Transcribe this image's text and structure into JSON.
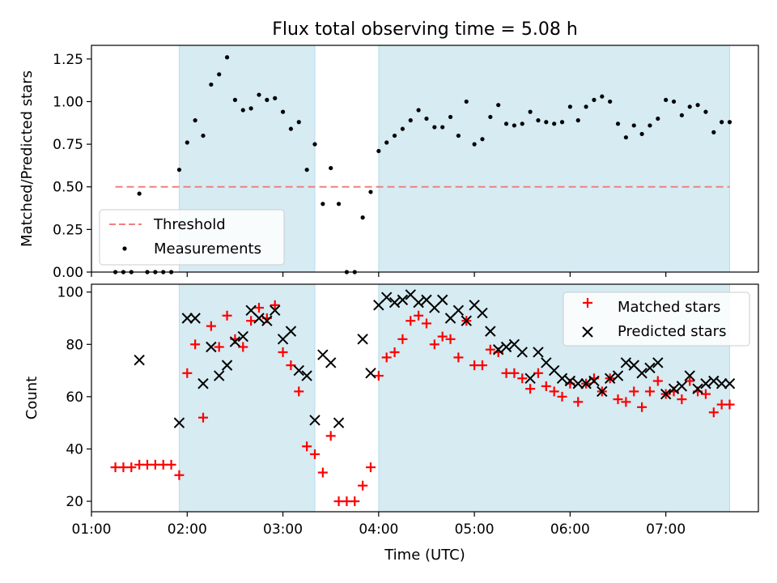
{
  "chart_data": [
    {
      "type": "scatter",
      "title": "Flux total observing time = 5.08 h",
      "xlabel": "",
      "ylabel": "Matched/Predicted stars",
      "xlim": [
        "01:00",
        "07:58"
      ],
      "ylim": [
        0,
        1.33
      ],
      "yticks": [
        "0.00",
        "0.25",
        "0.50",
        "0.75",
        "1.00",
        "1.25"
      ],
      "shaded_intervals": [
        [
          "01:55",
          "03:20"
        ],
        [
          "04:00",
          "07:40"
        ]
      ],
      "shade_color": "#add8e6",
      "threshold": {
        "name": "Threshold",
        "value": 0.5,
        "x_range": [
          "01:15",
          "07:40"
        ],
        "color": "#f08080"
      },
      "series": [
        {
          "name": "Measurements",
          "color": "#000000",
          "points": [
            [
              "01:15",
              0.0
            ],
            [
              "01:20",
              0.0
            ],
            [
              "01:25",
              0.0
            ],
            [
              "01:30",
              0.46
            ],
            [
              "01:35",
              0.0
            ],
            [
              "01:40",
              0.0
            ],
            [
              "01:45",
              0.0
            ],
            [
              "01:50",
              0.0
            ],
            [
              "01:55",
              0.6
            ],
            [
              "02:00",
              0.76
            ],
            [
              "02:05",
              0.89
            ],
            [
              "02:10",
              0.8
            ],
            [
              "02:15",
              1.1
            ],
            [
              "02:20",
              1.16
            ],
            [
              "02:25",
              1.26
            ],
            [
              "02:30",
              1.01
            ],
            [
              "02:35",
              0.95
            ],
            [
              "02:40",
              0.96
            ],
            [
              "02:45",
              1.04
            ],
            [
              "02:50",
              1.01
            ],
            [
              "02:55",
              1.02
            ],
            [
              "03:00",
              0.94
            ],
            [
              "03:05",
              0.84
            ],
            [
              "03:10",
              0.88
            ],
            [
              "03:15",
              0.6
            ],
            [
              "03:20",
              0.75
            ],
            [
              "03:25",
              0.4
            ],
            [
              "03:30",
              0.61
            ],
            [
              "03:35",
              0.4
            ],
            [
              "03:40",
              0.0
            ],
            [
              "03:45",
              0.0
            ],
            [
              "03:50",
              0.32
            ],
            [
              "03:55",
              0.47
            ],
            [
              "04:00",
              0.71
            ],
            [
              "04:05",
              0.76
            ],
            [
              "04:10",
              0.8
            ],
            [
              "04:15",
              0.84
            ],
            [
              "04:20",
              0.89
            ],
            [
              "04:25",
              0.95
            ],
            [
              "04:30",
              0.9
            ],
            [
              "04:35",
              0.85
            ],
            [
              "04:40",
              0.85
            ],
            [
              "04:45",
              0.91
            ],
            [
              "04:50",
              0.8
            ],
            [
              "04:55",
              1.0
            ],
            [
              "05:00",
              0.75
            ],
            [
              "05:05",
              0.78
            ],
            [
              "05:10",
              0.91
            ],
            [
              "05:15",
              0.98
            ],
            [
              "05:20",
              0.87
            ],
            [
              "05:25",
              0.86
            ],
            [
              "05:30",
              0.87
            ],
            [
              "05:35",
              0.94
            ],
            [
              "05:40",
              0.89
            ],
            [
              "05:45",
              0.88
            ],
            [
              "05:50",
              0.87
            ],
            [
              "05:55",
              0.88
            ],
            [
              "06:00",
              0.97
            ],
            [
              "06:05",
              0.89
            ],
            [
              "06:10",
              0.97
            ],
            [
              "06:15",
              1.01
            ],
            [
              "06:20",
              1.03
            ],
            [
              "06:25",
              1.0
            ],
            [
              "06:30",
              0.87
            ],
            [
              "06:35",
              0.79
            ],
            [
              "06:40",
              0.86
            ],
            [
              "06:45",
              0.81
            ],
            [
              "06:50",
              0.86
            ],
            [
              "06:55",
              0.9
            ],
            [
              "07:00",
              1.01
            ],
            [
              "07:05",
              1.0
            ],
            [
              "07:10",
              0.92
            ],
            [
              "07:15",
              0.97
            ],
            [
              "07:20",
              0.98
            ],
            [
              "07:25",
              0.94
            ],
            [
              "07:30",
              0.82
            ],
            [
              "07:35",
              0.88
            ],
            [
              "07:40",
              0.88
            ]
          ]
        }
      ],
      "legend": {
        "position": "lower-left",
        "entries": [
          "Threshold",
          "Measurements"
        ]
      }
    },
    {
      "type": "scatter",
      "title": "",
      "xlabel": "Time (UTC)",
      "ylabel": "Count",
      "xlim": [
        "01:00",
        "07:58"
      ],
      "ylim": [
        16,
        103
      ],
      "yticks": [
        "20",
        "40",
        "60",
        "80",
        "100"
      ],
      "xticks": [
        "01:00",
        "02:00",
        "03:00",
        "04:00",
        "05:00",
        "06:00",
        "07:00"
      ],
      "shaded_intervals": [
        [
          "01:55",
          "03:20"
        ],
        [
          "04:00",
          "07:40"
        ]
      ],
      "shade_color": "#add8e6",
      "series": [
        {
          "name": "Matched stars",
          "marker": "plus",
          "color": "#ff0000",
          "points": [
            [
              "01:15",
              33
            ],
            [
              "01:20",
              33
            ],
            [
              "01:25",
              33
            ],
            [
              "01:30",
              34
            ],
            [
              "01:35",
              34
            ],
            [
              "01:40",
              34
            ],
            [
              "01:45",
              34
            ],
            [
              "01:50",
              34
            ],
            [
              "01:55",
              30
            ],
            [
              "02:00",
              69
            ],
            [
              "02:05",
              80
            ],
            [
              "02:10",
              52
            ],
            [
              "02:15",
              87
            ],
            [
              "02:20",
              79
            ],
            [
              "02:25",
              91
            ],
            [
              "02:30",
              82
            ],
            [
              "02:35",
              79
            ],
            [
              "02:40",
              89
            ],
            [
              "02:45",
              94
            ],
            [
              "02:50",
              90
            ],
            [
              "02:55",
              95
            ],
            [
              "03:00",
              77
            ],
            [
              "03:05",
              72
            ],
            [
              "03:10",
              62
            ],
            [
              "03:15",
              41
            ],
            [
              "03:20",
              38
            ],
            [
              "03:25",
              31
            ],
            [
              "03:30",
              45
            ],
            [
              "03:35",
              20
            ],
            [
              "03:40",
              20
            ],
            [
              "03:45",
              20
            ],
            [
              "03:50",
              26
            ],
            [
              "03:55",
              33
            ],
            [
              "04:00",
              68
            ],
            [
              "04:05",
              75
            ],
            [
              "04:10",
              77
            ],
            [
              "04:15",
              82
            ],
            [
              "04:20",
              89
            ],
            [
              "04:25",
              91
            ],
            [
              "04:30",
              88
            ],
            [
              "04:35",
              80
            ],
            [
              "04:40",
              83
            ],
            [
              "04:45",
              82
            ],
            [
              "04:50",
              75
            ],
            [
              "04:55",
              89
            ],
            [
              "05:00",
              72
            ],
            [
              "05:05",
              72
            ],
            [
              "05:10",
              78
            ],
            [
              "05:15",
              77
            ],
            [
              "05:20",
              69
            ],
            [
              "05:25",
              69
            ],
            [
              "05:30",
              67
            ],
            [
              "05:35",
              63
            ],
            [
              "05:40",
              69
            ],
            [
              "05:45",
              64
            ],
            [
              "05:50",
              62
            ],
            [
              "05:55",
              60
            ],
            [
              "06:00",
              65
            ],
            [
              "06:05",
              58
            ],
            [
              "06:10",
              65
            ],
            [
              "06:15",
              67
            ],
            [
              "06:20",
              62
            ],
            [
              "06:25",
              67
            ],
            [
              "06:30",
              59
            ],
            [
              "06:35",
              58
            ],
            [
              "06:40",
              62
            ],
            [
              "06:45",
              56
            ],
            [
              "06:50",
              62
            ],
            [
              "06:55",
              66
            ],
            [
              "07:00",
              61
            ],
            [
              "07:05",
              62
            ],
            [
              "07:10",
              59
            ],
            [
              "07:15",
              66
            ],
            [
              "07:20",
              62
            ],
            [
              "07:25",
              61
            ],
            [
              "07:30",
              54
            ],
            [
              "07:35",
              57
            ],
            [
              "07:40",
              57
            ]
          ]
        },
        {
          "name": "Predicted stars",
          "marker": "x",
          "color": "#000000",
          "points": [
            [
              "01:30",
              74
            ],
            [
              "01:55",
              50
            ],
            [
              "02:00",
              90
            ],
            [
              "02:05",
              90
            ],
            [
              "02:10",
              65
            ],
            [
              "02:15",
              79
            ],
            [
              "02:20",
              68
            ],
            [
              "02:25",
              72
            ],
            [
              "02:30",
              81
            ],
            [
              "02:35",
              83
            ],
            [
              "02:40",
              93
            ],
            [
              "02:45",
              90
            ],
            [
              "02:50",
              89
            ],
            [
              "02:55",
              93
            ],
            [
              "03:00",
              82
            ],
            [
              "03:05",
              85
            ],
            [
              "03:10",
              70
            ],
            [
              "03:15",
              68
            ],
            [
              "03:20",
              51
            ],
            [
              "03:25",
              76
            ],
            [
              "03:30",
              73
            ],
            [
              "03:35",
              50
            ],
            [
              "03:50",
              82
            ],
            [
              "03:55",
              69
            ],
            [
              "04:00",
              95
            ],
            [
              "04:05",
              98
            ],
            [
              "04:10",
              96
            ],
            [
              "04:15",
              97
            ],
            [
              "04:20",
              99
            ],
            [
              "04:25",
              96
            ],
            [
              "04:30",
              97
            ],
            [
              "04:35",
              94
            ],
            [
              "04:40",
              97
            ],
            [
              "04:45",
              90
            ],
            [
              "04:50",
              93
            ],
            [
              "04:55",
              89
            ],
            [
              "05:00",
              95
            ],
            [
              "05:05",
              92
            ],
            [
              "05:10",
              85
            ],
            [
              "05:15",
              78
            ],
            [
              "05:20",
              79
            ],
            [
              "05:25",
              80
            ],
            [
              "05:30",
              77
            ],
            [
              "05:35",
              67
            ],
            [
              "05:40",
              77
            ],
            [
              "05:45",
              73
            ],
            [
              "05:50",
              70
            ],
            [
              "05:55",
              67
            ],
            [
              "06:00",
              66
            ],
            [
              "06:05",
              65
            ],
            [
              "06:10",
              65
            ],
            [
              "06:15",
              66
            ],
            [
              "06:20",
              62
            ],
            [
              "06:25",
              67
            ],
            [
              "06:30",
              68
            ],
            [
              "06:35",
              73
            ],
            [
              "06:40",
              72
            ],
            [
              "06:45",
              69
            ],
            [
              "06:50",
              71
            ],
            [
              "06:55",
              73
            ],
            [
              "07:00",
              61
            ],
            [
              "07:05",
              63
            ],
            [
              "07:10",
              64
            ],
            [
              "07:15",
              68
            ],
            [
              "07:20",
              63
            ],
            [
              "07:25",
              65
            ],
            [
              "07:30",
              66
            ],
            [
              "07:35",
              65
            ],
            [
              "07:40",
              65
            ]
          ]
        }
      ],
      "legend": {
        "position": "upper-right",
        "entries": [
          "Matched stars",
          "Predicted stars"
        ]
      }
    }
  ]
}
